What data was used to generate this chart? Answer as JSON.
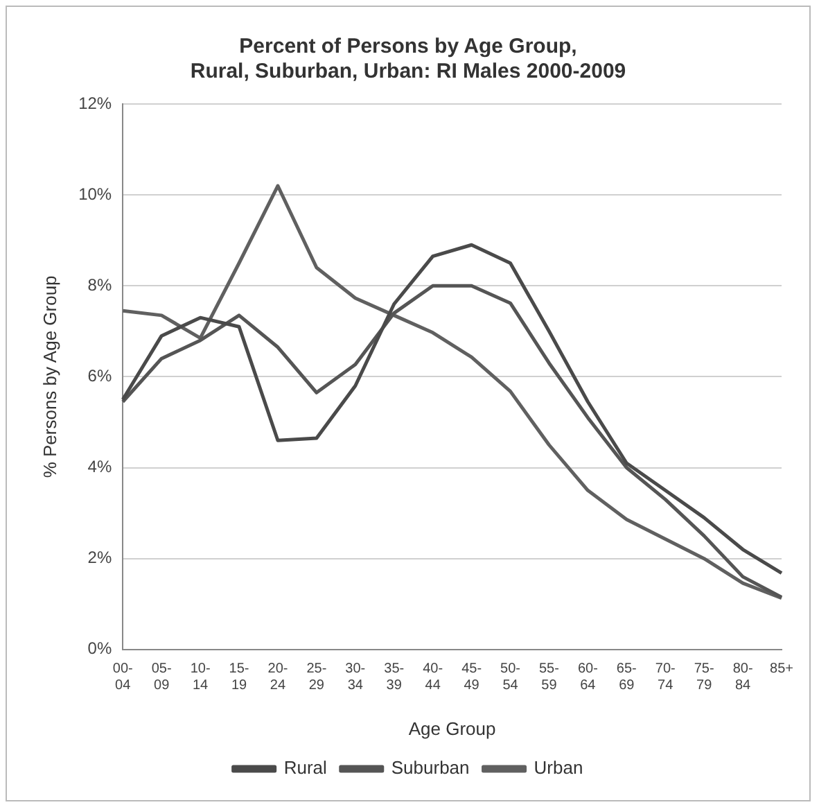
{
  "chart_data": {
    "type": "line",
    "title": [
      "Percent of Persons by Age Group,",
      "Rural, Suburban, Urban: RI Males 2000-2009"
    ],
    "xlabel": "Age Group",
    "ylabel": "% Persons by Age Group",
    "categories": [
      "00-04",
      "05-09",
      "10-14",
      "15-19",
      "20-24",
      "25-29",
      "30-34",
      "35-39",
      "40-44",
      "45-49",
      "50-54",
      "55-59",
      "60-64",
      "65-69",
      "70-74",
      "75-79",
      "80-84",
      "85+"
    ],
    "series": [
      {
        "name": "Rural",
        "color": "#4a4a4a",
        "values": [
          5.5,
          6.9,
          7.3,
          7.1,
          4.6,
          4.65,
          5.8,
          7.6,
          8.65,
          8.9,
          8.5,
          7.0,
          5.45,
          4.1,
          3.5,
          2.9,
          2.2,
          1.68
        ]
      },
      {
        "name": "Suburban",
        "color": "#555555",
        "values": [
          5.45,
          6.4,
          6.8,
          7.35,
          6.65,
          5.65,
          6.27,
          7.4,
          8.0,
          8.0,
          7.62,
          6.3,
          5.1,
          4.0,
          3.3,
          2.5,
          1.6,
          1.15
        ]
      },
      {
        "name": "Urban",
        "color": "#606060",
        "values": [
          7.45,
          7.35,
          6.85,
          8.5,
          10.2,
          8.4,
          7.73,
          7.35,
          6.97,
          6.43,
          5.68,
          4.5,
          3.5,
          2.86,
          2.43,
          2.0,
          1.46,
          1.13
        ]
      }
    ],
    "ylim": [
      0,
      12
    ],
    "yticks": [
      {
        "value": 0,
        "label": "0%"
      },
      {
        "value": 2,
        "label": "2%"
      },
      {
        "value": 4,
        "label": "4%"
      },
      {
        "value": 6,
        "label": "6%"
      },
      {
        "value": 8,
        "label": "8%"
      },
      {
        "value": 10,
        "label": "10%"
      },
      {
        "value": 12,
        "label": "12%"
      }
    ],
    "grid": "y",
    "legend": "bottom",
    "marker": "none",
    "line_style": "solid"
  }
}
